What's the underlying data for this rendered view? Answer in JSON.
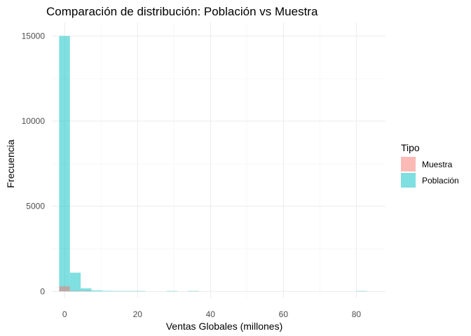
{
  "chart_data": {
    "type": "bar",
    "title": "Comparación de distribución: Población vs Muestra",
    "xlabel": "Ventas Globales (millones)",
    "ylabel": "Frecuencia",
    "xlim": [
      -3.5,
      88
    ],
    "ylim": [
      -400,
      15800
    ],
    "x_ticks": [
      0,
      20,
      40,
      60,
      80
    ],
    "y_ticks": [
      0,
      5000,
      10000,
      15000
    ],
    "grid": true,
    "bin_width": 2.95,
    "legend": {
      "title": "Tipo",
      "position": "right",
      "entries": [
        "Muestra",
        "Población"
      ]
    },
    "series": [
      {
        "name": "Población",
        "color": "#00BFC4",
        "opacity": 0.5,
        "bins": [
          {
            "x0": -1.5,
            "x1": 1.45,
            "value": 15000
          },
          {
            "x0": 1.45,
            "x1": 4.4,
            "value": 1100
          },
          {
            "x0": 4.4,
            "x1": 7.35,
            "value": 180
          },
          {
            "x0": 7.35,
            "x1": 10.3,
            "value": 60
          },
          {
            "x0": 10.3,
            "x1": 13.25,
            "value": 30
          },
          {
            "x0": 13.25,
            "x1": 16.2,
            "value": 15
          },
          {
            "x0": 16.2,
            "x1": 19.15,
            "value": 4
          },
          {
            "x0": 19.15,
            "x1": 22.1,
            "value": 2
          },
          {
            "x0": 28.0,
            "x1": 30.95,
            "value": 1
          },
          {
            "x0": 33.9,
            "x1": 36.85,
            "value": 1
          },
          {
            "x0": 80.0,
            "x1": 82.95,
            "value": 1
          }
        ]
      },
      {
        "name": "Muestra",
        "color": "#F8766D",
        "opacity": 0.5,
        "bins": [
          {
            "x0": -1.5,
            "x1": 1.45,
            "value": 300
          },
          {
            "x0": 1.45,
            "x1": 4.4,
            "value": 20
          },
          {
            "x0": 4.4,
            "x1": 7.35,
            "value": 4
          }
        ]
      }
    ]
  }
}
